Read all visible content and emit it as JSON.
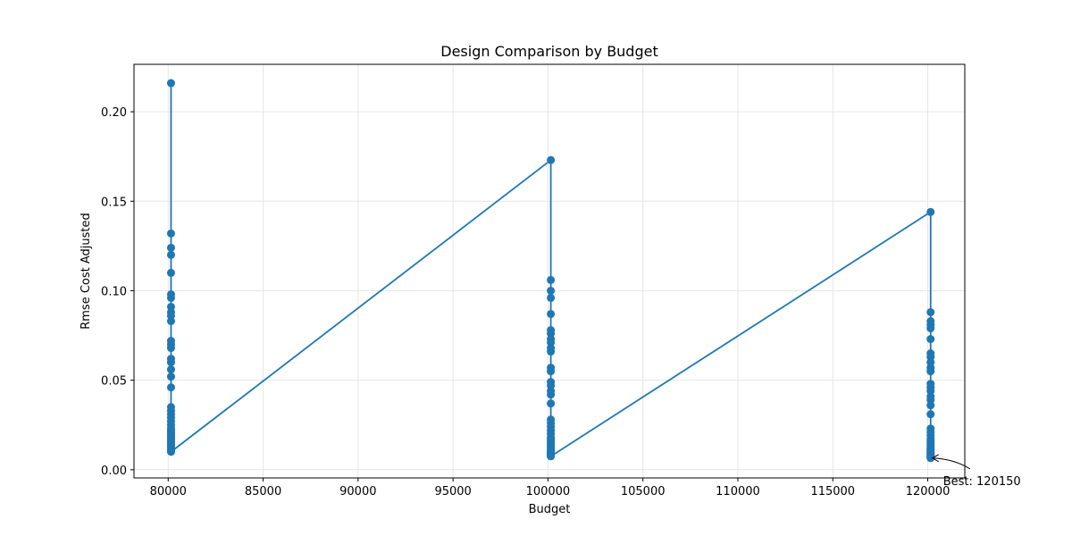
{
  "chart_data": {
    "type": "line",
    "title": "Design Comparison by Budget",
    "xlabel": "Budget",
    "ylabel": "Rmse Cost Adjusted",
    "xlim": [
      78200,
      121950
    ],
    "ylim": [
      -0.0046,
      0.2265
    ],
    "xticks": [
      80000,
      85000,
      90000,
      95000,
      100000,
      105000,
      110000,
      115000,
      120000
    ],
    "xtick_labels": [
      "80000",
      "85000",
      "90000",
      "95000",
      "100000",
      "105000",
      "110000",
      "115000",
      "120000"
    ],
    "yticks": [
      0.0,
      0.05,
      0.1,
      0.15,
      0.2
    ],
    "ytick_labels": [
      "0.00",
      "0.05",
      "0.10",
      "0.15",
      "0.20"
    ],
    "grid": true,
    "color": "#1f77b4",
    "series": [
      {
        "x": [
          80150,
          80150,
          80150,
          80150,
          80150,
          80150,
          80150,
          80150,
          80150,
          80150,
          80150,
          80150,
          80150,
          80150,
          80150,
          80150,
          80150,
          80150,
          80150,
          80150,
          80150,
          80150,
          80150,
          80150,
          80150,
          80150,
          80150,
          80150,
          80150,
          80150,
          80150,
          80150,
          80150,
          80150,
          80150,
          80150,
          80150,
          80150,
          80150,
          80150,
          100150,
          100150,
          100150,
          100150,
          100150,
          100150,
          100150,
          100150,
          100150,
          100150,
          100150,
          100150,
          100150,
          100150,
          100150,
          100150,
          100150,
          100150,
          100150,
          100150,
          100150,
          100150,
          100150,
          100150,
          100150,
          100150,
          100150,
          100150,
          100150,
          100150,
          100150,
          100150,
          100150,
          100150,
          100150,
          100150,
          100150,
          100150,
          100150,
          100150,
          120150,
          120150,
          120150,
          120150,
          120150,
          120150,
          120150,
          120150,
          120150,
          120150,
          120150,
          120150,
          120150,
          120150,
          120150,
          120150,
          120150,
          120150,
          120150,
          120150,
          120150,
          120150,
          120150,
          120150,
          120150,
          120150,
          120150,
          120150,
          120150,
          120150,
          120150,
          120150,
          120150,
          120150,
          120150,
          120150,
          120150,
          120150,
          120150,
          120150
        ],
        "y": [
          0.216,
          0.132,
          0.124,
          0.12,
          0.11,
          0.098,
          0.096,
          0.091,
          0.088,
          0.086,
          0.083,
          0.072,
          0.07,
          0.068,
          0.062,
          0.06,
          0.056,
          0.052,
          0.046,
          0.035,
          0.033,
          0.031,
          0.029,
          0.027,
          0.025,
          0.023,
          0.022,
          0.021,
          0.02,
          0.019,
          0.018,
          0.017,
          0.016,
          0.015,
          0.014,
          0.013,
          0.012,
          0.011,
          0.0105,
          0.01,
          0.173,
          0.106,
          0.1,
          0.096,
          0.087,
          0.078,
          0.076,
          0.073,
          0.071,
          0.068,
          0.066,
          0.057,
          0.055,
          0.049,
          0.047,
          0.044,
          0.042,
          0.037,
          0.028,
          0.026,
          0.024,
          0.022,
          0.02,
          0.018,
          0.017,
          0.016,
          0.015,
          0.014,
          0.013,
          0.012,
          0.011,
          0.0105,
          0.01,
          0.0095,
          0.009,
          0.0085,
          0.008,
          0.0078,
          0.0076,
          0.0075,
          0.144,
          0.088,
          0.083,
          0.081,
          0.079,
          0.073,
          0.065,
          0.063,
          0.06,
          0.057,
          0.055,
          0.048,
          0.046,
          0.044,
          0.041,
          0.039,
          0.036,
          0.031,
          0.023,
          0.021,
          0.019,
          0.017,
          0.016,
          0.015,
          0.014,
          0.013,
          0.012,
          0.0115,
          0.011,
          0.0105,
          0.01,
          0.0095,
          0.009,
          0.0085,
          0.008,
          0.0075,
          0.007,
          0.0068,
          0.0066,
          0.0065
        ]
      }
    ],
    "annotation": {
      "text": "Best: 120150",
      "x": 120150,
      "y": 0.0065
    }
  }
}
